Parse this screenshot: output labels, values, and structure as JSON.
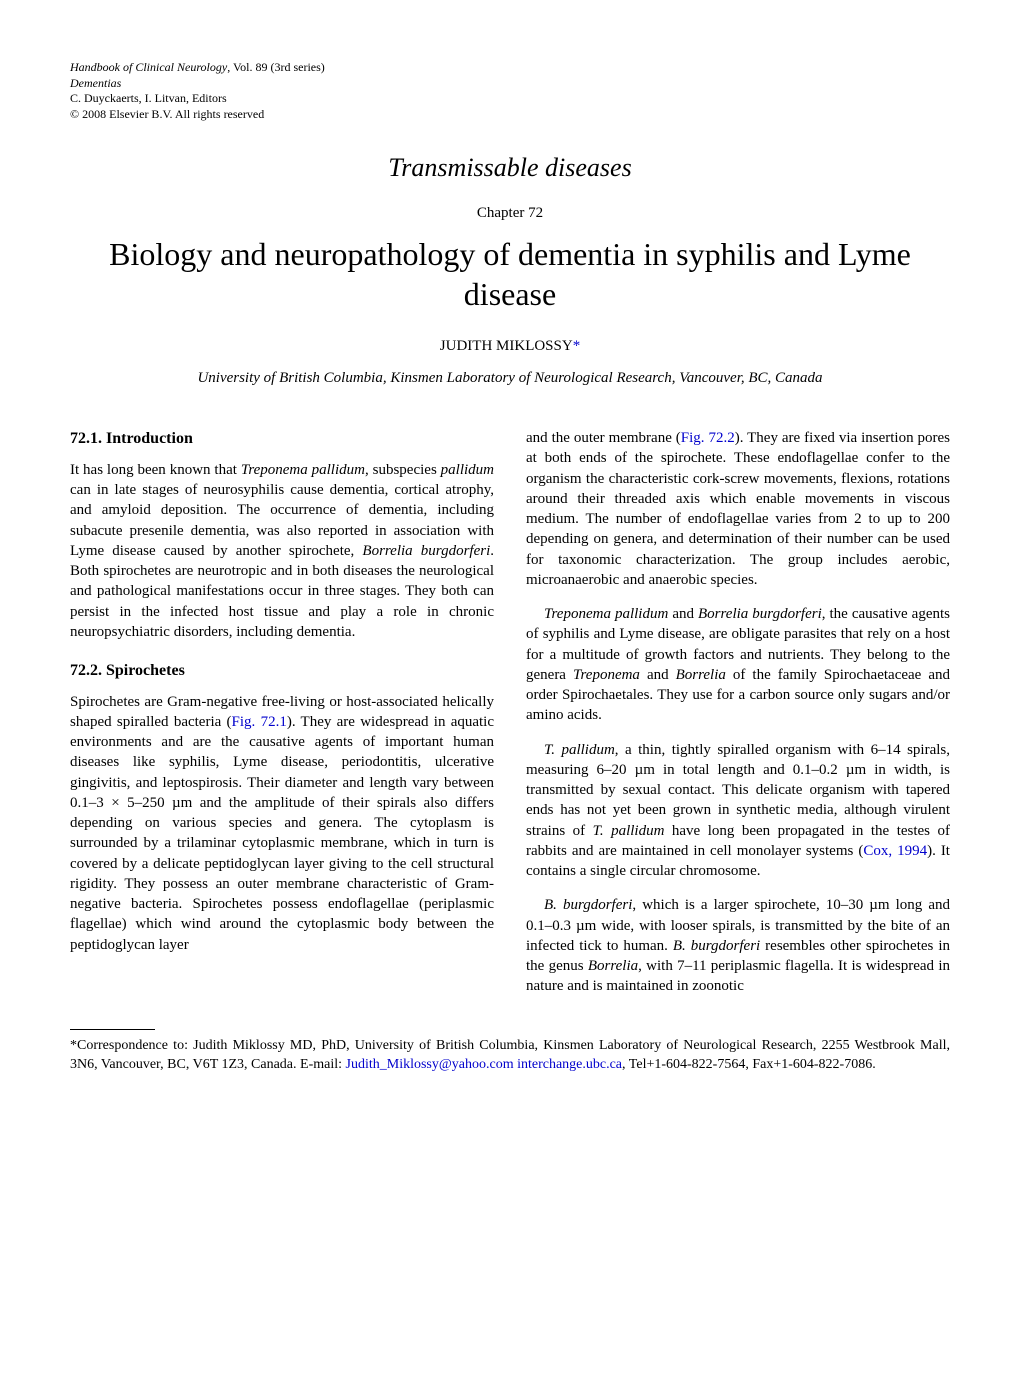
{
  "header": {
    "journal": "Handbook of Clinical Neurology",
    "vol_series": ", Vol. 89 (3rd series)",
    "subseries": "Dementias",
    "editors": "C. Duyckaerts, I. Litvan, Editors",
    "copyright": "© 2008 Elsevier B.V. All rights reserved"
  },
  "section_title": "Transmissable diseases",
  "chapter_label": "Chapter 72",
  "title": "Biology and neuropathology of dementia in syphilis and Lyme disease",
  "author_name": "JUDITH MIKLOSSY",
  "author_mark": "*",
  "affiliation": "University of British Columbia, Kinsmen Laboratory of Neurological Research, Vancouver, BC, Canada",
  "left": {
    "h_intro": "72.1. Introduction",
    "intro_p1_a": "It has long been known that ",
    "intro_p1_sp1": "Treponema pallidum",
    "intro_p1_b": ", subspecies ",
    "intro_p1_sp2": "pallidum",
    "intro_p1_c": " can in late stages of neurosyphilis cause dementia, cortical atrophy, and amyloid deposition. The occurrence of dementia, including subacute presenile dementia, was also reported in association with Lyme disease caused by another spirochete, ",
    "intro_p1_sp3": "Borrelia burgdorferi",
    "intro_p1_d": ". Both spirochetes are neurotropic and in both diseases the neurological and pathological manifestations occur in three stages. They both can persist in the infected host tissue and play a role in chronic neuropsychiatric disorders, including dementia.",
    "h_spiro": "72.2. Spirochetes",
    "spiro_p1_a": "Spirochetes are Gram-negative free-living or host-associated helically shaped spiralled bacteria (",
    "spiro_p1_fig": "Fig. 72.1",
    "spiro_p1_b": "). They are widespread in aquatic environments and are the causative agents of important human diseases like syphilis, Lyme disease, periodontitis, ulcerative gingivitis, and leptospirosis. Their diameter and length vary between 0.1–3 × 5–250 µm and the amplitude of their spirals also differs depending on various species and genera. The cytoplasm is surrounded by a trilaminar cytoplasmic membrane, which in turn is covered by a delicate peptidoglycan layer giving to the cell structural rigidity. They possess an outer membrane characteristic of Gram-negative bacteria. Spirochetes possess endoflagellae (periplasmic flagellae) which wind around the cytoplasmic body between the peptidoglycan layer"
  },
  "right": {
    "p1_a": "and the outer membrane (",
    "p1_fig": "Fig. 72.2",
    "p1_b": "). They are fixed via insertion pores at both ends of the spirochete. These endoflagellae confer to the organism the characteristic cork-screw movements, flexions, rotations around their threaded axis which enable movements in viscous medium. The number of endoflagellae varies from 2 to up to 200 depending on genera, and determination of their number can be used for taxonomic characterization. The group includes aerobic, microanaerobic and anaerobic species.",
    "p2_sp1": "Treponema pallidum",
    "p2_a": " and ",
    "p2_sp2": "Borrelia burgdorferi",
    "p2_b": ", the causative agents of syphilis and Lyme disease, are obligate parasites that rely on a host for a multitude of growth factors and nutrients. They belong to the genera ",
    "p2_sp3": "Treponema",
    "p2_c": " and ",
    "p2_sp4": "Borrelia",
    "p2_d": " of the family Spirochaetaceae and order Spirochaetales. They use for a carbon source only sugars and/or amino acids.",
    "p3_sp1": "T. pallidum",
    "p3_a": ", a thin, tightly spiralled organism with 6–14 spirals, measuring 6–20 µm in total length and 0.1–0.2 µm in width, is transmitted by sexual contact. This delicate organism with tapered ends has not yet been grown in synthetic media, although virulent strains of ",
    "p3_sp2": "T. pallidum",
    "p3_b": " have long been propagated in the testes of rabbits and are maintained in cell monolayer systems (",
    "p3_cite": "Cox, 1994",
    "p3_c": "). It contains a single circular chromosome.",
    "p4_sp1": "B. burgdorferi",
    "p4_a": ", which is a larger spirochete, 10–30 µm long and 0.1–0.3 µm wide, with looser spirals, is transmitted by the bite of an infected tick to human. ",
    "p4_sp2": "B. burgdorferi",
    "p4_b": " resembles other spirochetes in the genus ",
    "p4_sp3": "Borrelia",
    "p4_c": ", with 7–11 periplasmic flagella. It is widespread in nature and is maintained in zoonotic"
  },
  "footnote": {
    "text_a": "*Correspondence to: Judith Miklossy MD, PhD, University of British Columbia, Kinsmen Laboratory of Neurological Research, 2255 Westbrook Mall, 3N6, Vancouver, BC, V6T 1Z3, Canada. E-mail: ",
    "email1": "Judith_Miklossy@yahoo.com",
    "email2": "interchange.ubc.ca",
    "text_b": ", Tel+1-604-822-7564, Fax+1-604-822-7086."
  }
}
